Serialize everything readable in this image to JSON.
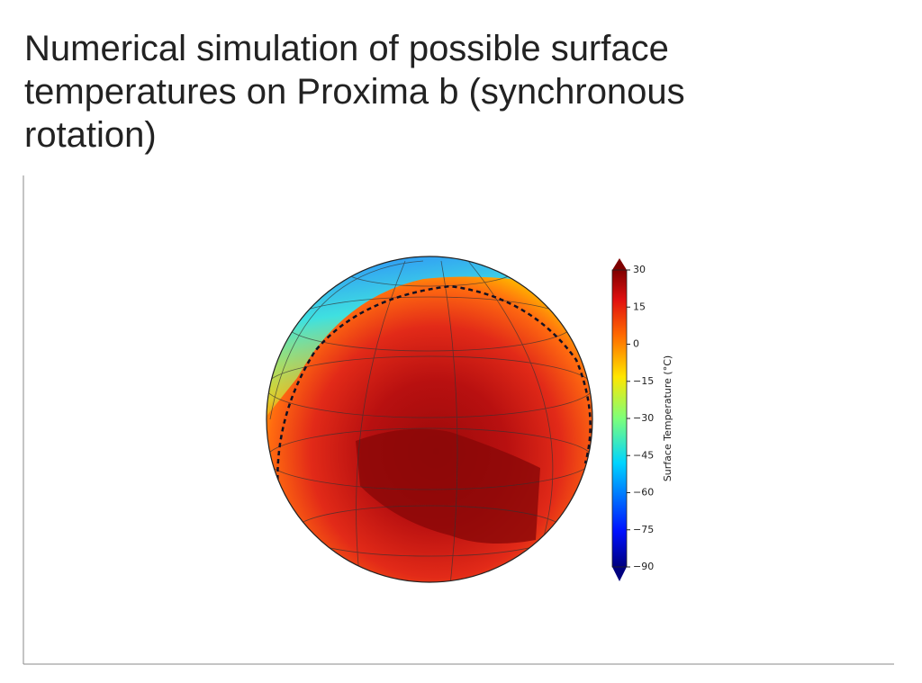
{
  "title": "Numerical simulation of possible surface temperatures on Proxima b (synchronous rotation)",
  "chart_data": {
    "type": "colorbar",
    "colorbar_label": "Surface Temperature (°C)",
    "ylim": [
      -90,
      30
    ],
    "yticks": [
      30,
      15,
      0,
      {
        "value": -15,
        "label": "−15"
      },
      {
        "value": -30,
        "label": "−30"
      },
      {
        "value": -45,
        "label": "−45"
      },
      {
        "value": -60,
        "label": "−60"
      },
      {
        "value": -75,
        "label": "−75"
      },
      {
        "value": -90,
        "label": "−90"
      }
    ]
  }
}
